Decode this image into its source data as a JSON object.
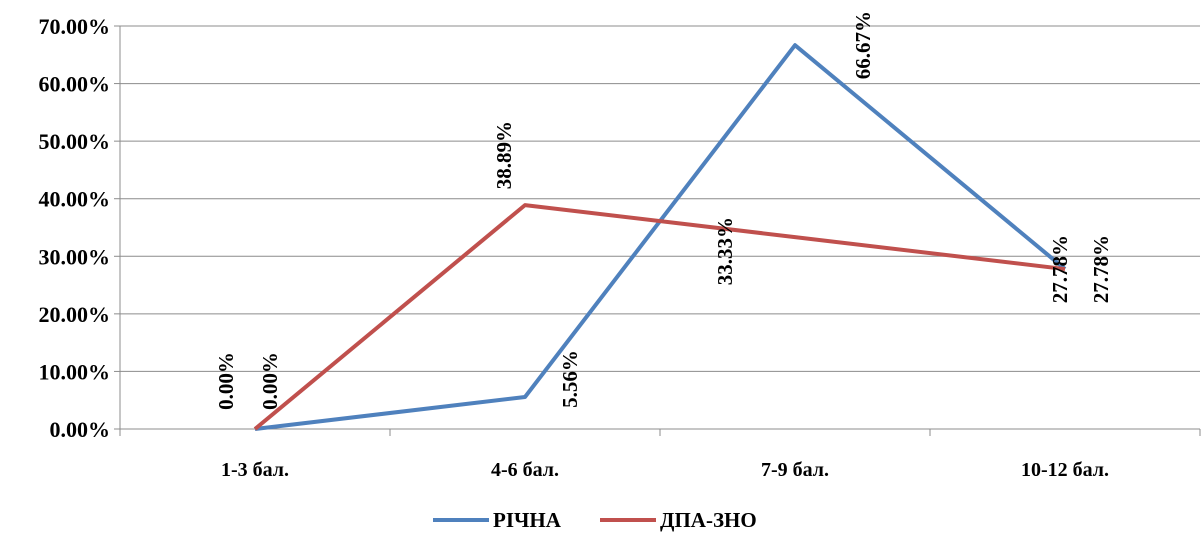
{
  "chart_data": {
    "type": "line",
    "categories": [
      "1-3 бал.",
      "4-6 бал.",
      "7-9 бал.",
      "10-12 бал."
    ],
    "series": [
      {
        "name": "РІЧНА",
        "values": [
          0.0,
          5.56,
          66.67,
          27.78
        ],
        "labels": [
          "0.00%",
          "5.56%",
          "66.67%",
          "27.78%"
        ],
        "color": "#4F81BD"
      },
      {
        "name": "ДПА-ЗНО",
        "values": [
          0.0,
          38.89,
          33.33,
          27.78
        ],
        "labels": [
          "0.00%",
          "38.89%",
          "33.33%",
          "27.78%"
        ],
        "color": "#C0504D"
      }
    ],
    "ylim": [
      0,
      70
    ],
    "yticks": [
      "0.00%",
      "10.00%",
      "20.00%",
      "30.00%",
      "40.00%",
      "50.00%",
      "60.00%",
      "70.00%"
    ],
    "grid": true,
    "legend": "bottom"
  }
}
